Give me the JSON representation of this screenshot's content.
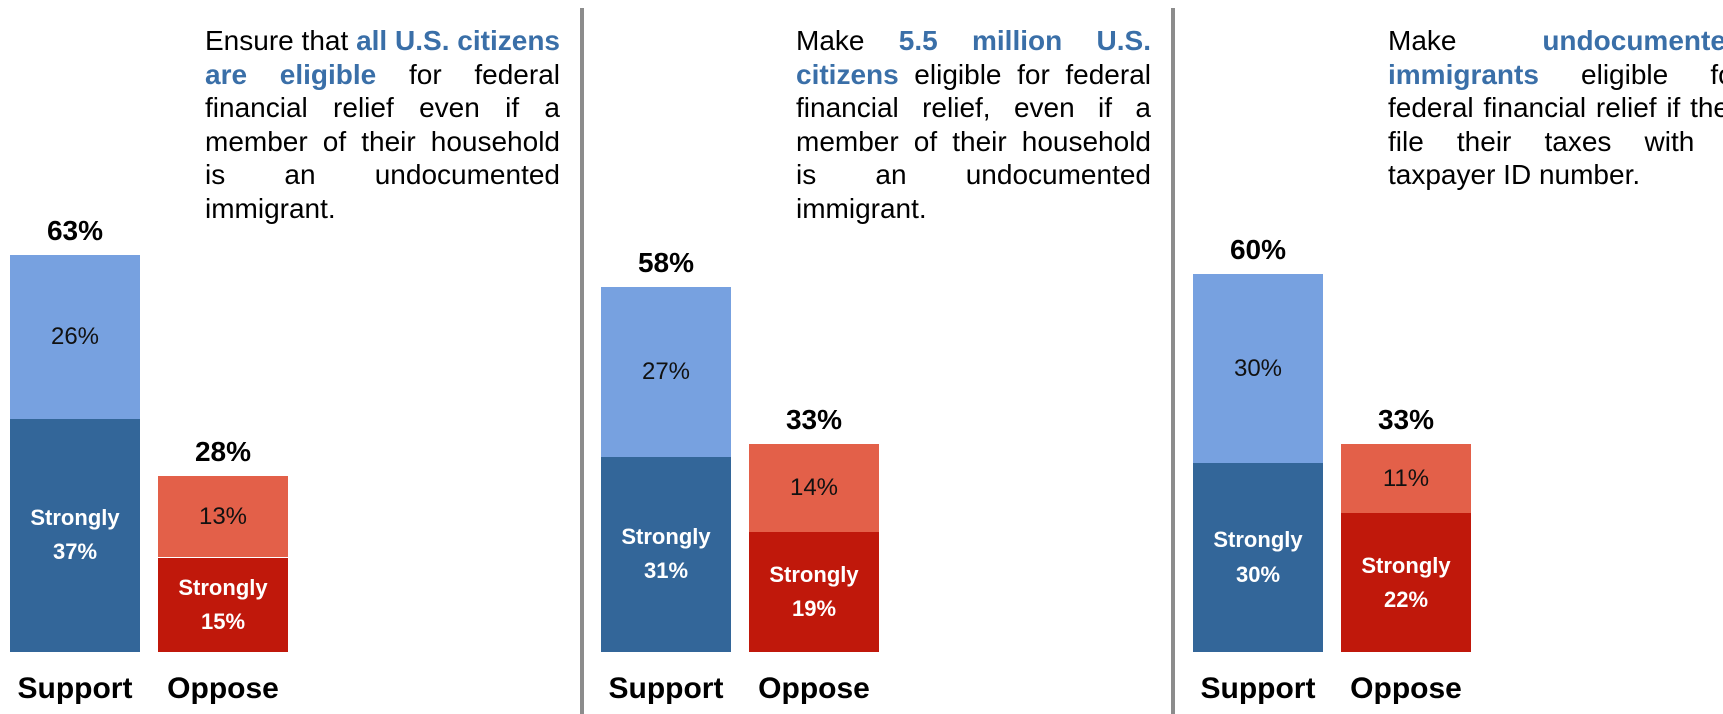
{
  "colors": {
    "support_strongly": "#336699",
    "support_somewhat": "#77a1e0",
    "oppose_strongly": "#c0180b",
    "oppose_somewhat": "#e36049",
    "highlight_text": "#3a6fa8"
  },
  "chart_data": [
    {
      "type": "bar",
      "stacked": true,
      "categories": [
        "Support",
        "Oppose"
      ],
      "totals": [
        "63%",
        "28%"
      ],
      "strongly": [
        37,
        15
      ],
      "somewhat": [
        26,
        13
      ],
      "strongly_label": "Strongly",
      "strongly_pct": [
        "37%",
        "15%"
      ],
      "somewhat_pct": [
        "26%",
        "13%"
      ],
      "description": {
        "pre": "Ensure that ",
        "hl1": "all U.S. citizens are eligible",
        "post": " for federal financial relief even if a member of their household is an undocumented immigrant."
      }
    },
    {
      "type": "bar",
      "stacked": true,
      "categories": [
        "Support",
        "Oppose"
      ],
      "totals": [
        "58%",
        "33%"
      ],
      "strongly": [
        31,
        19
      ],
      "somewhat": [
        27,
        14
      ],
      "strongly_label": "Strongly",
      "strongly_pct": [
        "31%",
        "19%"
      ],
      "somewhat_pct": [
        "27%",
        "14%"
      ],
      "description": {
        "pre": "Make ",
        "hl1": "5.5 million U.S. citizens",
        "post": " eligible for federal financial relief, even if a member of their household is an undocumented immigrant."
      }
    },
    {
      "type": "bar",
      "stacked": true,
      "categories": [
        "Support",
        "Oppose"
      ],
      "totals": [
        "60%",
        "33%"
      ],
      "strongly": [
        30,
        22
      ],
      "somewhat": [
        30,
        11
      ],
      "strongly_label": "Strongly",
      "strongly_pct": [
        "30%",
        "22%"
      ],
      "somewhat_pct": [
        "30%",
        "11%"
      ],
      "description": {
        "pre": "Make ",
        "hl1": "undocumented immigrants",
        "post": " eligible for federal financial relief if they file their taxes with a taxpayer ID number."
      }
    }
  ]
}
